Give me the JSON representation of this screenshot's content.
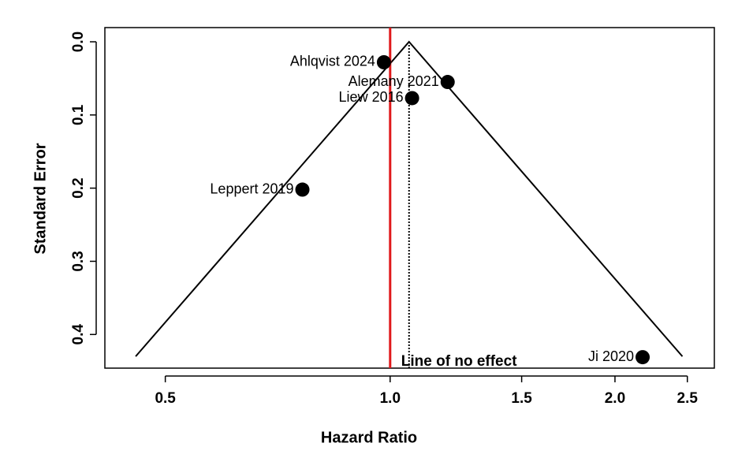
{
  "chart_data": {
    "type": "funnel",
    "x_label": "Hazard Ratio",
    "y_label": "Standard Error",
    "labels": [
      "Ahlqvist 2024",
      "Alemany 2021",
      "Liew 2016",
      "Leppert 2019",
      "Ji 2020"
    ],
    "x": [
      0.981,
      1.194,
      1.07,
      0.763,
      2.178
    ],
    "values": [
      0.028,
      0.055,
      0.077,
      0.202,
      0.431
    ],
    "pooled_estimate": 1.06,
    "funnel_se_max": 0.43,
    "null_value": 1,
    "null_label": "Line of no effect",
    "null_color": "#e0191b",
    "color": "#000000",
    "x_log": true,
    "y_reversed": true,
    "xlim": [
      0.415,
      2.717
    ],
    "ylim": [
      -0.0194,
      0.446
    ],
    "xticks": [
      0.5,
      {
        "value": 1,
        "label": "1.0"
      },
      1.5,
      {
        "value": 2,
        "label": "2.0"
      },
      2.5
    ],
    "yticks": [
      {
        "value": 0,
        "label": "0.0"
      },
      0.1,
      0.2,
      0.3,
      0.4
    ]
  }
}
